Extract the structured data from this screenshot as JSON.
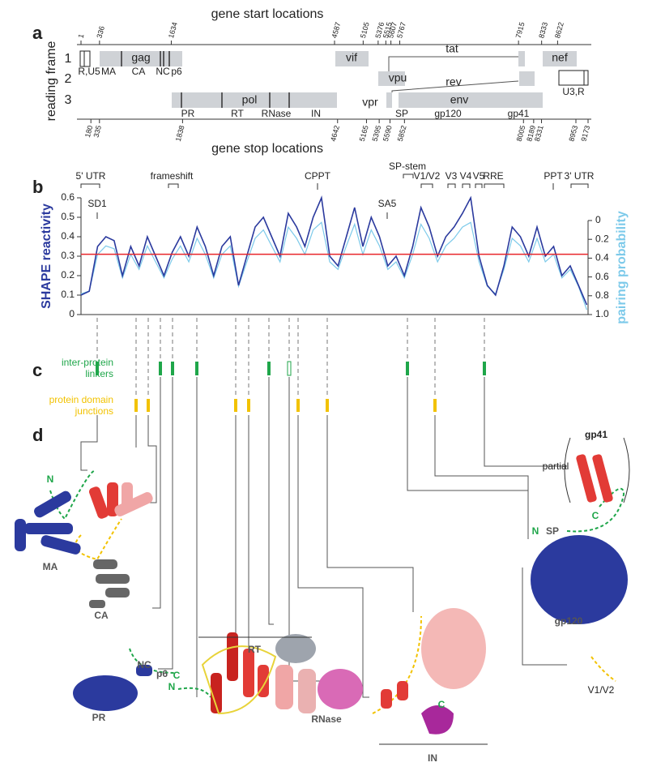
{
  "panel_labels": [
    "a",
    "b",
    "c",
    "d"
  ],
  "panel_a": {
    "start_title": "gene start locations",
    "stop_title": "gene stop locations",
    "y_title": "reading frame",
    "frames": [
      "1",
      "2",
      "3"
    ],
    "start_ticks": [
      1,
      336,
      1634,
      4587,
      5105,
      5376,
      5515,
      5607,
      5767,
      7915,
      8333,
      8622
    ],
    "stop_ticks": [
      180,
      335,
      1838,
      4642,
      5165,
      5395,
      5590,
      5852,
      8005,
      8189,
      8331,
      8953,
      9173
    ],
    "gene_labels": [
      "gag",
      "vif",
      "tat",
      "nef",
      "vpu",
      "rev",
      "pol",
      "vpr",
      "env"
    ],
    "region_labels": [
      "R,U5",
      "MA",
      "CA",
      "NC",
      "p6",
      "U3,R",
      "PR",
      "RT",
      "RNase",
      "IN",
      "SP",
      "gp120",
      "gp41"
    ]
  },
  "panel_b": {
    "y_label": "SHAPE reactivity",
    "y2_label": "pairing probability",
    "ylim": [
      0,
      0.6
    ],
    "yticks": [
      0,
      0.1,
      0.2,
      0.3,
      0.4,
      0.5,
      0.6
    ],
    "y2lim": [
      0,
      1
    ],
    "y2_inverted": true,
    "y2ticks": [
      0,
      0.2,
      0.4,
      0.6,
      0.8,
      {
        "value": 1,
        "label": "1.0"
      }
    ],
    "threshold": {
      "value": 0.31,
      "color": "#e8262b"
    },
    "annotations": [
      "5' UTR",
      "SD1",
      "frameshift",
      "CPPT",
      "SP-stem",
      "SA5",
      "V1/V2",
      "V3",
      "V4",
      "V5",
      "RRE",
      "PPT",
      "3' UTR"
    ],
    "x": [
      0,
      150,
      300,
      450,
      600,
      750,
      900,
      1050,
      1200,
      1350,
      1500,
      1650,
      1800,
      1950,
      2100,
      2250,
      2400,
      2550,
      2700,
      2850,
      3000,
      3150,
      3300,
      3450,
      3600,
      3750,
      3900,
      4050,
      4200,
      4350,
      4500,
      4650,
      4800,
      4950,
      5100,
      5250,
      5400,
      5550,
      5700,
      5850,
      6000,
      6150,
      6300,
      6450,
      6600,
      6750,
      6900,
      7050,
      7200,
      7350,
      7500,
      7650,
      7800,
      7950,
      8100,
      8250,
      8400,
      8550,
      8700,
      8850,
      9000,
      9150
    ],
    "series": [
      {
        "color": "#2b3a9e",
        "axis": "y",
        "values": [
          0.1,
          0.12,
          0.35,
          0.4,
          0.38,
          0.2,
          0.35,
          0.25,
          0.4,
          0.3,
          0.2,
          0.32,
          0.4,
          0.3,
          0.45,
          0.35,
          0.2,
          0.35,
          0.4,
          0.15,
          0.3,
          0.45,
          0.5,
          0.4,
          0.3,
          0.52,
          0.45,
          0.35,
          0.5,
          0.6,
          0.3,
          0.25,
          0.4,
          0.55,
          0.35,
          0.5,
          0.4,
          0.25,
          0.3,
          0.2,
          0.35,
          0.55,
          0.45,
          0.3,
          0.4,
          0.45,
          0.52,
          0.6,
          0.3,
          0.15,
          0.1,
          0.25,
          0.45,
          0.4,
          0.3,
          0.45,
          0.3,
          0.35,
          0.2,
          0.25,
          0.15,
          0.05
        ]
      },
      {
        "color": "#7dcaea",
        "axis": "y2",
        "values": [
          0.78,
          0.75,
          0.36,
          0.27,
          0.3,
          0.61,
          0.36,
          0.52,
          0.27,
          0.44,
          0.61,
          0.41,
          0.27,
          0.44,
          0.19,
          0.36,
          0.61,
          0.36,
          0.27,
          0.7,
          0.44,
          0.19,
          0.1,
          0.27,
          0.44,
          0.07,
          0.19,
          0.36,
          0.1,
          0.02,
          0.44,
          0.52,
          0.27,
          0.04,
          0.36,
          0.1,
          0.27,
          0.52,
          0.44,
          0.61,
          0.36,
          0.04,
          0.19,
          0.44,
          0.27,
          0.19,
          0.07,
          0.02,
          0.44,
          0.7,
          0.78,
          0.52,
          0.19,
          0.27,
          0.44,
          0.19,
          0.44,
          0.36,
          0.61,
          0.52,
          0.7,
          0.95
        ]
      }
    ]
  },
  "panel_c": {
    "linker_label": [
      "inter-protein",
      "linkers"
    ],
    "junction_label": [
      "protein domain",
      "junctions"
    ]
  },
  "panel_d": {
    "labels": [
      "N",
      "MA",
      "CA",
      "NC",
      "p6",
      "C",
      "PR",
      "N",
      "RT",
      "RNase",
      "IN",
      "C",
      "gp41",
      "partial",
      "C",
      "N",
      "SP",
      "gp120",
      "V1/V2"
    ]
  }
}
